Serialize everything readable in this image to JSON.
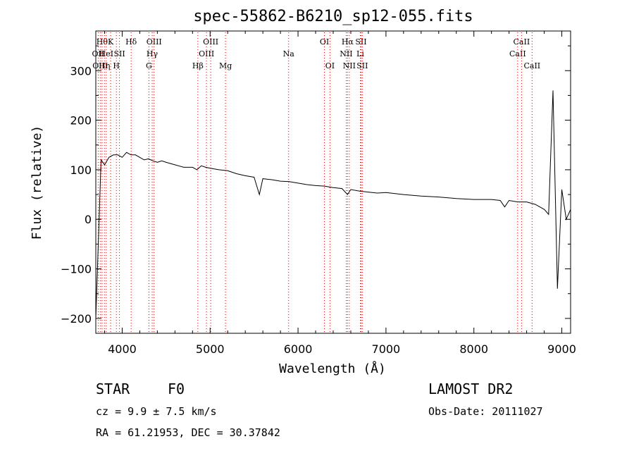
{
  "chart_data": {
    "type": "line",
    "title": "spec-55862-B6210_sp12-055.fits",
    "xlabel": "Wavelength (Å)",
    "ylabel": "Flux (relative)",
    "xlim": [
      3700,
      9100
    ],
    "ylim": [
      -230,
      380
    ],
    "xticks": [
      4000,
      5000,
      6000,
      7000,
      8000,
      9000
    ],
    "yticks": [
      -200,
      -100,
      0,
      100,
      200,
      300
    ],
    "grid": false,
    "series": [
      {
        "x": [
          3700,
          3760,
          3800,
          3850,
          3900,
          3950,
          4000,
          4050,
          4100,
          4150,
          4200,
          4250,
          4300,
          4350,
          4400,
          4450,
          4500,
          4600,
          4700,
          4800,
          4850,
          4900,
          4950,
          5000,
          5100,
          5200,
          5300,
          5400,
          5500,
          5560,
          5600,
          5700,
          5800,
          5900,
          6000,
          6100,
          6200,
          6300,
          6400,
          6500,
          6563,
          6600,
          6700,
          6800,
          6900,
          7000,
          7200,
          7400,
          7600,
          7800,
          8000,
          8200,
          8300,
          8350,
          8400,
          8500,
          8600,
          8700,
          8750,
          8800,
          8850,
          8900,
          8950,
          9000,
          9050,
          9100
        ],
        "y": [
          -200,
          120,
          110,
          125,
          130,
          130,
          125,
          135,
          130,
          130,
          125,
          120,
          122,
          118,
          115,
          118,
          115,
          110,
          105,
          105,
          100,
          108,
          105,
          103,
          100,
          98,
          92,
          88,
          85,
          50,
          82,
          80,
          77,
          76,
          73,
          70,
          68,
          67,
          64,
          62,
          50,
          60,
          57,
          55,
          53,
          54,
          50,
          47,
          45,
          42,
          40,
          40,
          38,
          25,
          38,
          35,
          35,
          30,
          25,
          20,
          10,
          260,
          -140,
          60,
          0,
          20
        ]
      }
    ],
    "line_markers": [
      {
        "x": 3727,
        "label": "OII",
        "row": 1
      },
      {
        "x": 3750,
        "label": "OIII",
        "row": 2
      },
      {
        "x": 3771,
        "label": "Hθ",
        "row": 0
      },
      {
        "x": 3798,
        "label": "Hη",
        "row": 2
      },
      {
        "x": 3819,
        "label": "HeI",
        "row": 1
      },
      {
        "x": 3869,
        "label": "K",
        "row": 0
      },
      {
        "x": 3934,
        "label": "H",
        "row": 2
      },
      {
        "x": 3969,
        "label": "SII",
        "row": 1
      },
      {
        "x": 4102,
        "label": "Hδ",
        "row": 0
      },
      {
        "x": 4304,
        "label": "G",
        "row": 2
      },
      {
        "x": 4341,
        "label": "Hγ",
        "row": 1
      },
      {
        "x": 4363,
        "label": "OIII",
        "row": 0
      },
      {
        "x": 4861,
        "label": "Hβ",
        "row": 2
      },
      {
        "x": 4959,
        "label": "OIII",
        "row": 1
      },
      {
        "x": 5007,
        "label": "OIII",
        "row": 0
      },
      {
        "x": 5175,
        "label": "Mg",
        "row": 2
      },
      {
        "x": 5893,
        "label": "Na",
        "row": 1
      },
      {
        "x": 6300,
        "label": "OI",
        "row": 0
      },
      {
        "x": 6363,
        "label": "OI",
        "row": 2
      },
      {
        "x": 6548,
        "label": "NII",
        "row": 1
      },
      {
        "x": 6563,
        "label": "Hα",
        "row": 0
      },
      {
        "x": 6583,
        "label": "NII",
        "row": 2
      },
      {
        "x": 6708,
        "label": "Li",
        "row": 1
      },
      {
        "x": 6716,
        "label": "SII",
        "row": 0
      },
      {
        "x": 6731,
        "label": "SII",
        "row": 2
      },
      {
        "x": 8498,
        "label": "CaII",
        "row": 1
      },
      {
        "x": 8542,
        "label": "CaII",
        "row": 0
      },
      {
        "x": 8662,
        "label": "CaII",
        "row": 2
      }
    ],
    "marker_color": "#cc0000"
  },
  "info": {
    "object_class": "STAR",
    "subclass": "F0",
    "survey": "LAMOST DR2",
    "cz": "cz = 9.9 ± 7.5 km/s",
    "obs_date": "Obs-Date: 20111027",
    "coords": "RA =  61.21953, DEC =  30.37842"
  }
}
